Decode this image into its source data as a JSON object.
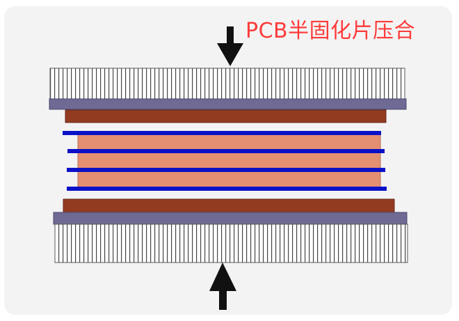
{
  "title": "PCB半固化片压合",
  "colors": {
    "background": "#f3f3f3",
    "title": "#ff3b3b",
    "press_plate_stripe": "#444444",
    "press_plate_fill": "#ffffff",
    "base_plate": "#6f6a93",
    "copper_dark": "#923b21",
    "core_light": "#e58f72",
    "prepreg_blue": "#0b11c7",
    "arrow": "#111111"
  },
  "icons": {
    "top_arrow": "arrow-down-icon",
    "bottom_arrow": "arrow-up-icon"
  }
}
